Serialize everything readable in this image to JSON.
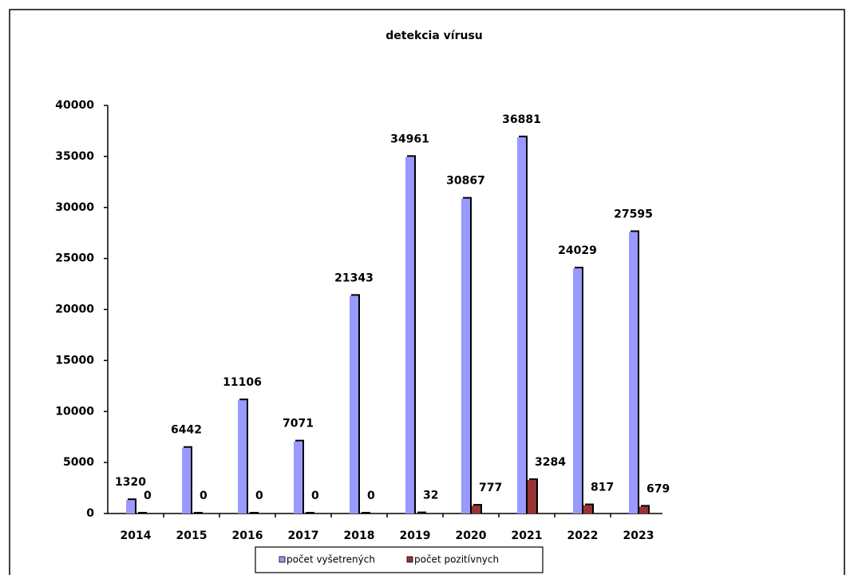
{
  "chart_data": {
    "type": "bar",
    "title": "detekcia vírusu",
    "categories": [
      "2014",
      "2015",
      "2016",
      "2017",
      "2018",
      "2019",
      "2020",
      "2021",
      "2022",
      "2023"
    ],
    "series": [
      {
        "name": "počet vyšetrených",
        "color": "#9999ff",
        "values": [
          1320,
          6442,
          11106,
          7071,
          21343,
          34961,
          30867,
          36881,
          24029,
          27595
        ]
      },
      {
        "name": "počet pozitívnych",
        "color": "#993333",
        "values": [
          0,
          0,
          0,
          0,
          0,
          32,
          777,
          3284,
          817,
          679
        ]
      }
    ],
    "ylim": [
      0,
      40000
    ],
    "yticks": [
      0,
      5000,
      10000,
      15000,
      20000,
      25000,
      30000,
      35000,
      40000
    ],
    "grid": false,
    "legend": "bottom"
  }
}
